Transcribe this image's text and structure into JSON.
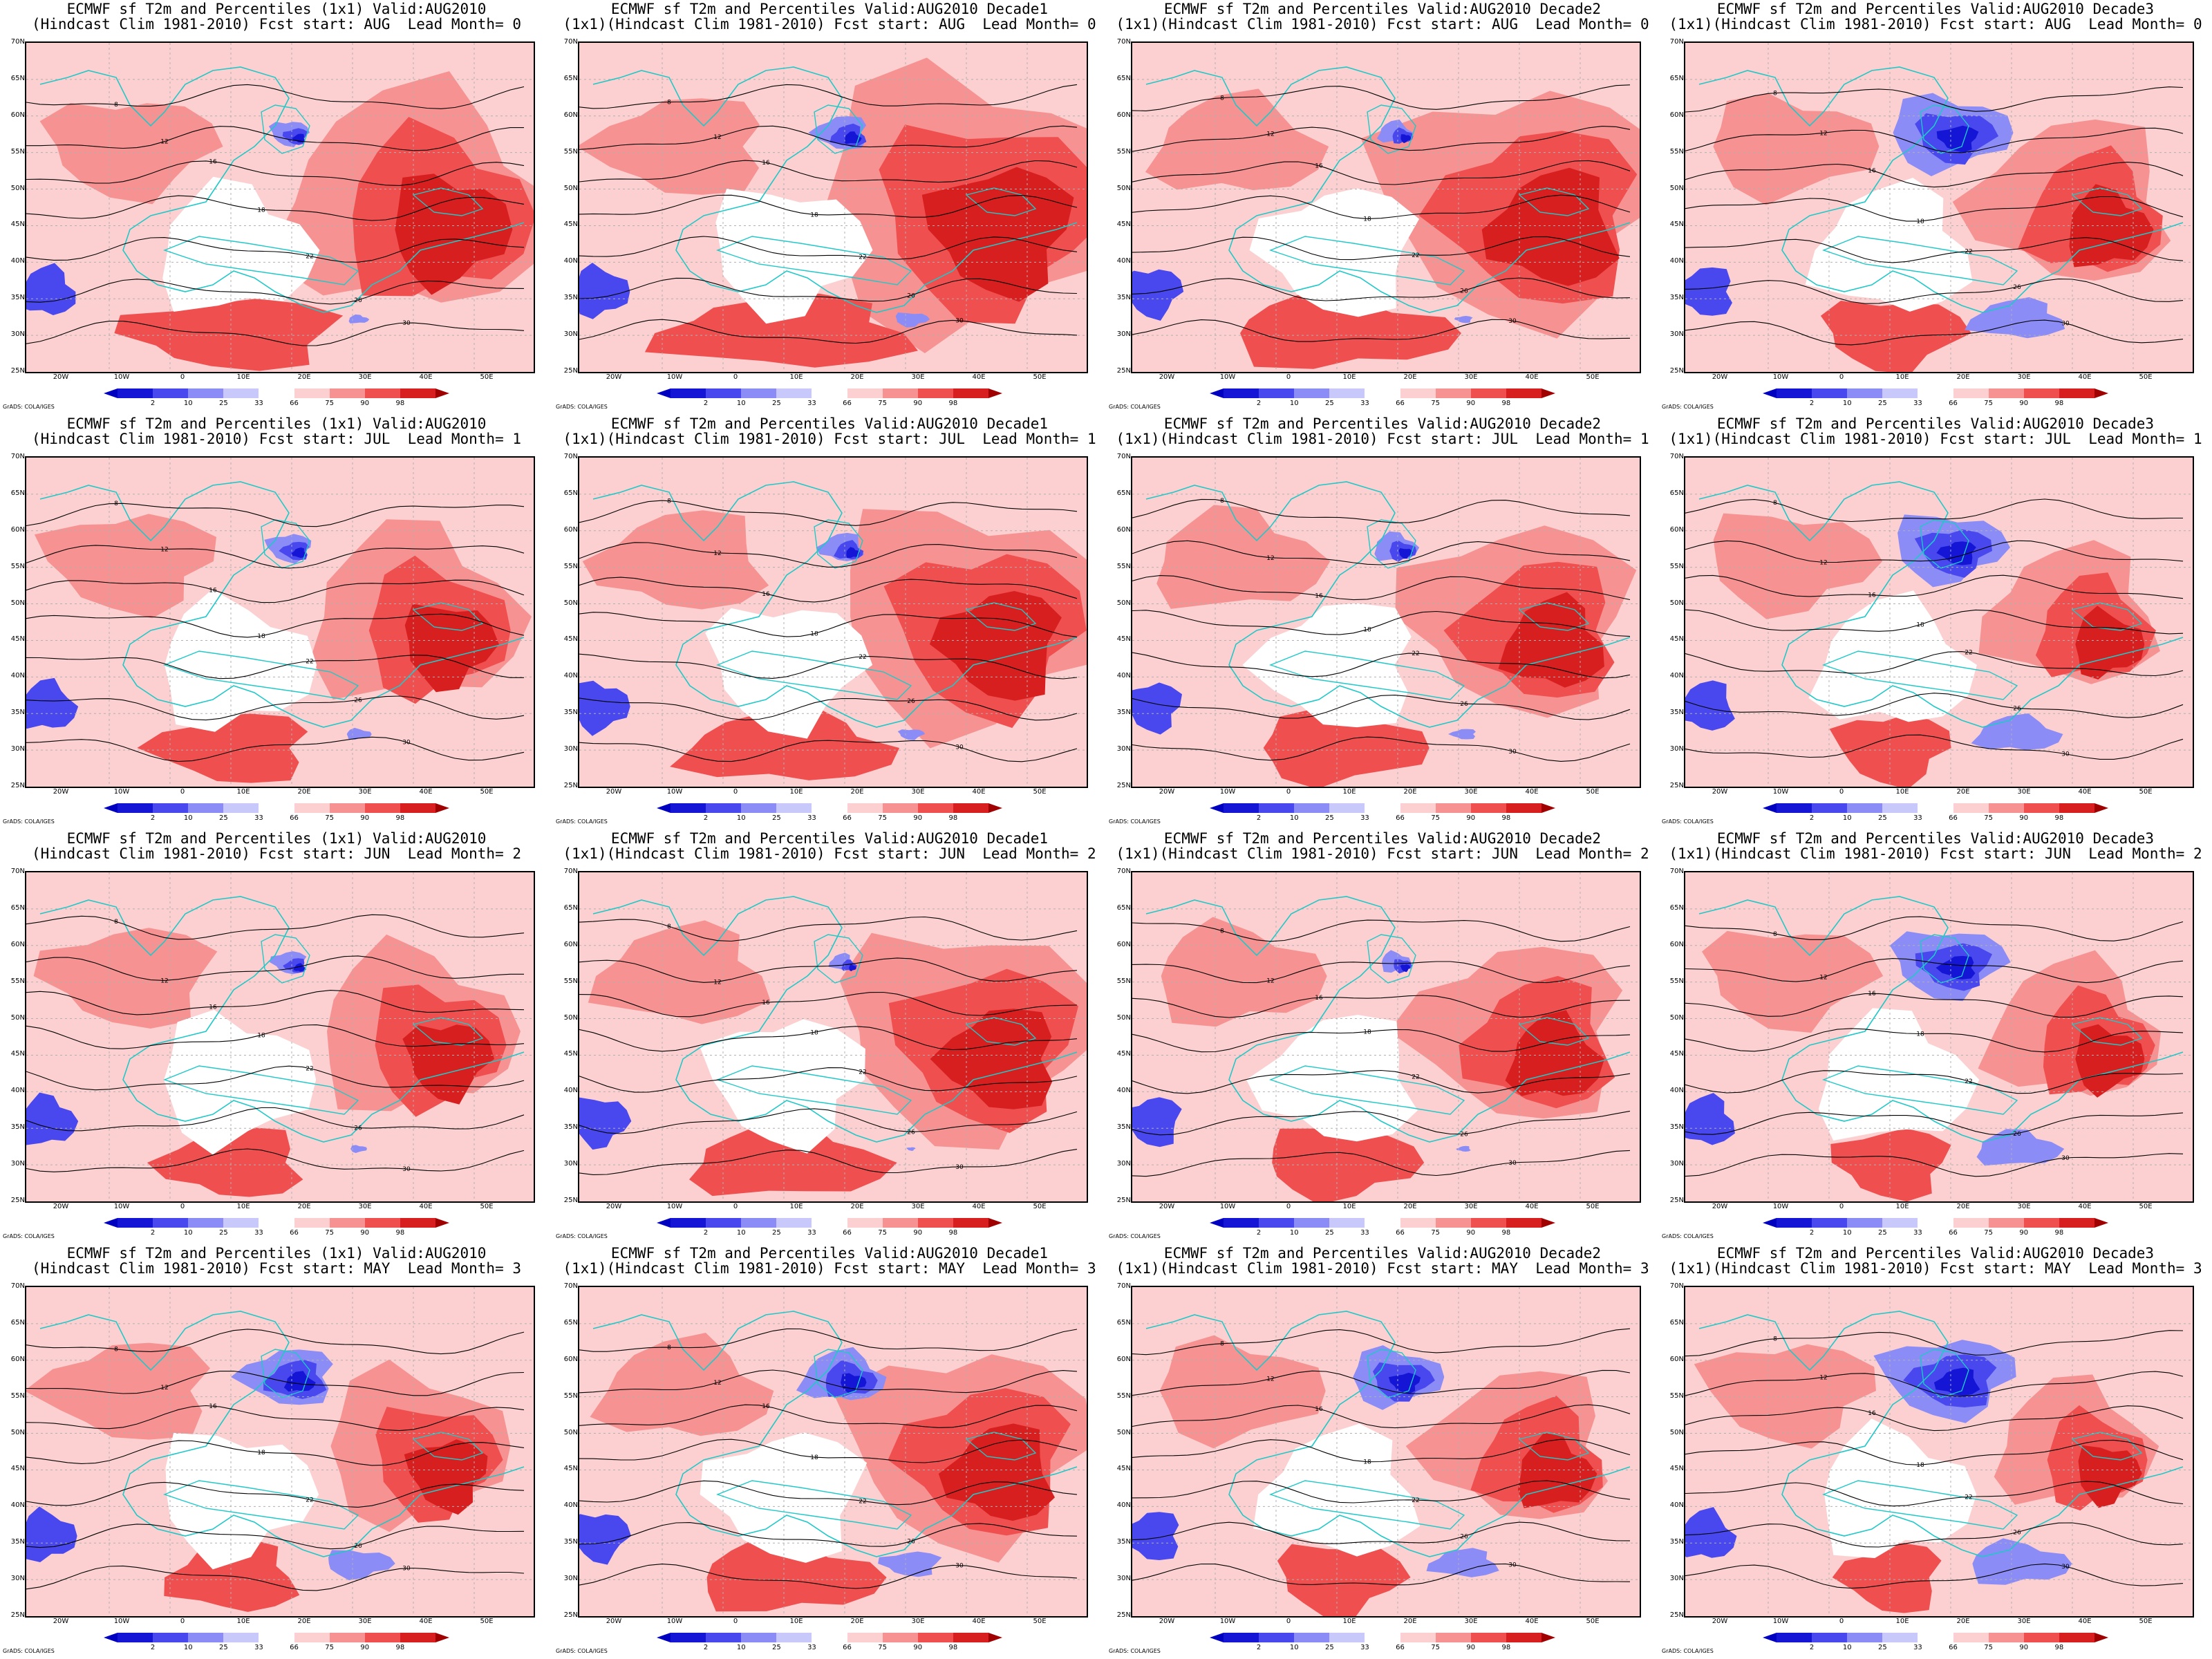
{
  "title_prefix": "ECMWF sf T2m and Percentiles",
  "credit": "GrADS: COLA/IGES",
  "lat_labels": [
    "70N",
    "65N",
    "60N",
    "55N",
    "50N",
    "45N",
    "40N",
    "35N",
    "30N",
    "25N"
  ],
  "lon_labels": [
    "20W",
    "10W",
    "0",
    "10E",
    "20E",
    "30E",
    "40E",
    "50E"
  ],
  "colorbar": {
    "labels": [
      "2",
      "10",
      "25",
      "33",
      "66",
      "75",
      "90",
      "98"
    ],
    "colors": [
      "#1515d5",
      "#4848ee",
      "#8c8cf7",
      "#c8c8fb",
      "#ffffff",
      "#fcd0d0",
      "#f79292",
      "#ef4f4f",
      "#d71f1f"
    ],
    "under_color": "#0000c0",
    "over_color": "#a00000"
  },
  "panels": [
    {
      "line1": "ECMWF sf T2m and Percentiles (1x1) Valid:AUG2010",
      "line2": "(Hindcast Clim 1981-2010) Fcst start: AUG  Lead Month= 0",
      "warm": 0.75,
      "cold": 0.12
    },
    {
      "line1": "ECMWF sf T2m and Percentiles Valid:AUG2010 Decade1",
      "line2": "(1x1)(Hindcast Clim 1981-2010) Fcst start: AUG  Lead Month= 0",
      "warm": 0.9,
      "cold": 0.2
    },
    {
      "line1": "ECMWF sf T2m and Percentiles Valid:AUG2010 Decade2",
      "line2": "(1x1)(Hindcast Clim 1981-2010) Fcst start: AUG  Lead Month= 0",
      "warm": 0.8,
      "cold": 0.1
    },
    {
      "line1": "ECMWF sf T2m and Percentiles Valid:AUG2010 Decade3",
      "line2": "(1x1)(Hindcast Clim 1981-2010) Fcst start: AUG  Lead Month= 0",
      "warm": 0.5,
      "cold": 0.55
    },
    {
      "line1": "ECMWF sf T2m and Percentiles (1x1) Valid:AUG2010",
      "line2": "(Hindcast Clim 1981-2010) Fcst start: JUL  Lead Month= 1",
      "warm": 0.55,
      "cold": 0.15
    },
    {
      "line1": "ECMWF sf T2m and Percentiles Valid:AUG2010 Decade1",
      "line2": "(1x1)(Hindcast Clim 1981-2010) Fcst start: JUL  Lead Month= 1",
      "warm": 0.75,
      "cold": 0.15
    },
    {
      "line1": "ECMWF sf T2m and Percentiles Valid:AUG2010 Decade2",
      "line2": "(1x1)(Hindcast Clim 1981-2010) Fcst start: JUL  Lead Month= 1",
      "warm": 0.6,
      "cold": 0.15
    },
    {
      "line1": "ECMWF sf T2m and Percentiles Valid:AUG2010 Decade3",
      "line2": "(1x1)(Hindcast Clim 1981-2010) Fcst start: JUL  Lead Month= 1",
      "warm": 0.4,
      "cold": 0.5
    },
    {
      "line1": "ECMWF sf T2m and Percentiles (1x1) Valid:AUG2010",
      "line2": "(Hindcast Clim 1981-2010) Fcst start: JUN  Lead Month= 2",
      "warm": 0.5,
      "cold": 0.1
    },
    {
      "line1": "ECMWF sf T2m and Percentiles Valid:AUG2010 Decade1",
      "line2": "(1x1)(Hindcast Clim 1981-2010) Fcst start: JUN  Lead Month= 2",
      "warm": 0.7,
      "cold": 0.05
    },
    {
      "line1": "ECMWF sf T2m and Percentiles Valid:AUG2010 Decade2",
      "line2": "(1x1)(Hindcast Clim 1981-2010) Fcst start: JUN  Lead Month= 2",
      "warm": 0.55,
      "cold": 0.08
    },
    {
      "line1": "ECMWF sf T2m and Percentiles Valid:AUG2010 Decade3",
      "line2": "(1x1)(Hindcast Clim 1981-2010) Fcst start: JUN  Lead Month= 2",
      "warm": 0.4,
      "cold": 0.5
    },
    {
      "line1": "ECMWF sf T2m and Percentiles (1x1) Valid:AUG2010",
      "line2": "(Hindcast Clim 1981-2010) Fcst start: MAY  Lead Month= 3",
      "warm": 0.45,
      "cold": 0.4
    },
    {
      "line1": "ECMWF sf T2m and Percentiles Valid:AUG2010 Decade1",
      "line2": "(1x1)(Hindcast Clim 1981-2010) Fcst start: MAY  Lead Month= 3",
      "warm": 0.65,
      "cold": 0.35
    },
    {
      "line1": "ECMWF sf T2m and Percentiles Valid:AUG2010 Decade2",
      "line2": "(1x1)(Hindcast Clim 1981-2010) Fcst start: MAY  Lead Month= 3",
      "warm": 0.45,
      "cold": 0.4
    },
    {
      "line1": "ECMWF sf T2m and Percentiles Valid:AUG2010 Decade3",
      "line2": "(1x1)(Hindcast Clim 1981-2010) Fcst start: MAY  Lead Month= 3",
      "warm": 0.35,
      "cold": 0.6
    }
  ],
  "contour_labels": [
    "8",
    "12",
    "16",
    "18",
    "22",
    "26",
    "30"
  ]
}
